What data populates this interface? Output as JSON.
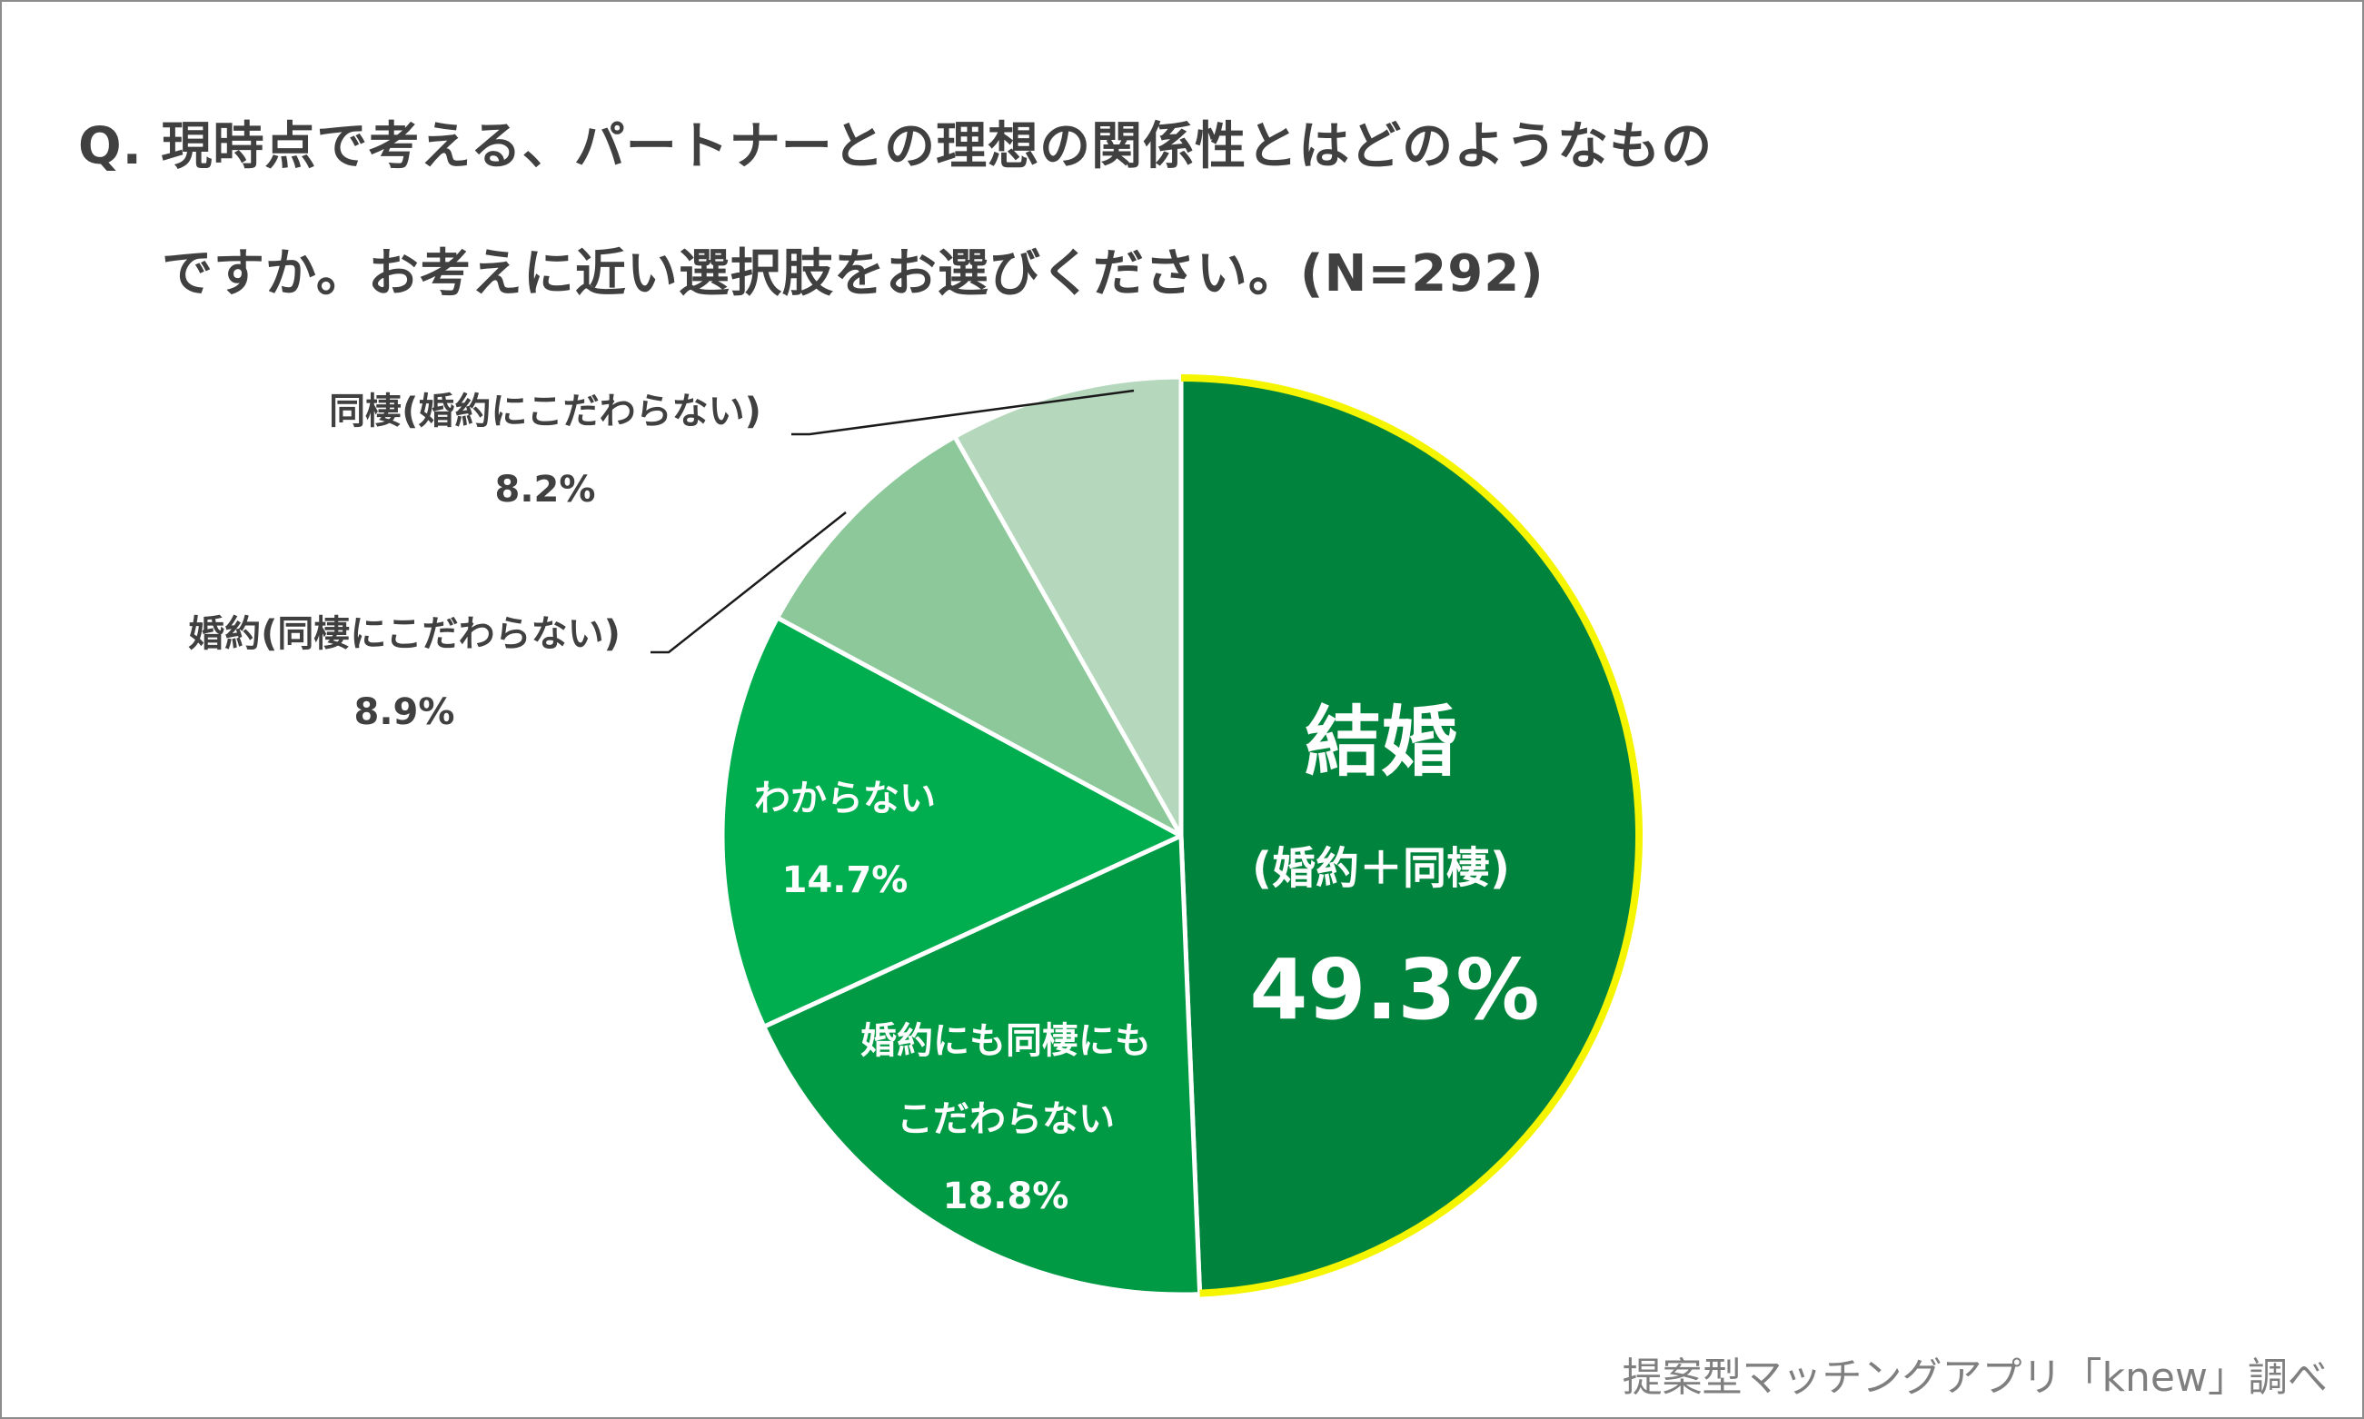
{
  "title": {
    "line1": "Q. 現時点で考える、パートナーとの理想の関係性とはどのようなもの",
    "line2": "ですか。お考えに近い選択肢をお選びください。(N=292)"
  },
  "source": "提案型マッチングアプリ「knew」調べ",
  "colors": {
    "marriage": "#00843d",
    "neither": "#009944",
    "unknown": "#00ad4f",
    "engagement": "#8cc89a",
    "cohabitation": "#b5d8bd",
    "highlight": "#f5f500"
  },
  "chart_data": {
    "type": "pie",
    "title": "Q. 現時点で考える、パートナーとの理想の関係性とはどのようなものですか。お考えに近い選択肢をお選びください。(N=292)",
    "start": "12 o'clock",
    "direction": "clockwise",
    "slices": [
      {
        "label": "結婚",
        "sublabel": "(婚約＋同棲)",
        "value": 49.3,
        "value_label": "49.3%",
        "color": "#00843d",
        "highlight": true
      },
      {
        "label": "婚約にも同棲にも",
        "sublabel": "こだわらない",
        "value": 18.8,
        "value_label": "18.8%",
        "color": "#009944"
      },
      {
        "label": "わからない",
        "sublabel": "",
        "value": 14.7,
        "value_label": "14.7%",
        "color": "#00ad4f"
      },
      {
        "label": "婚約(同棲にこだわらない)",
        "sublabel": "",
        "value": 8.9,
        "value_label": "8.9%",
        "color": "#8cc89a"
      },
      {
        "label": "同棲(婚約にこだわらない)",
        "sublabel": "",
        "value": 8.2,
        "value_label": "8.2%",
        "color": "#b5d8bd"
      }
    ]
  }
}
